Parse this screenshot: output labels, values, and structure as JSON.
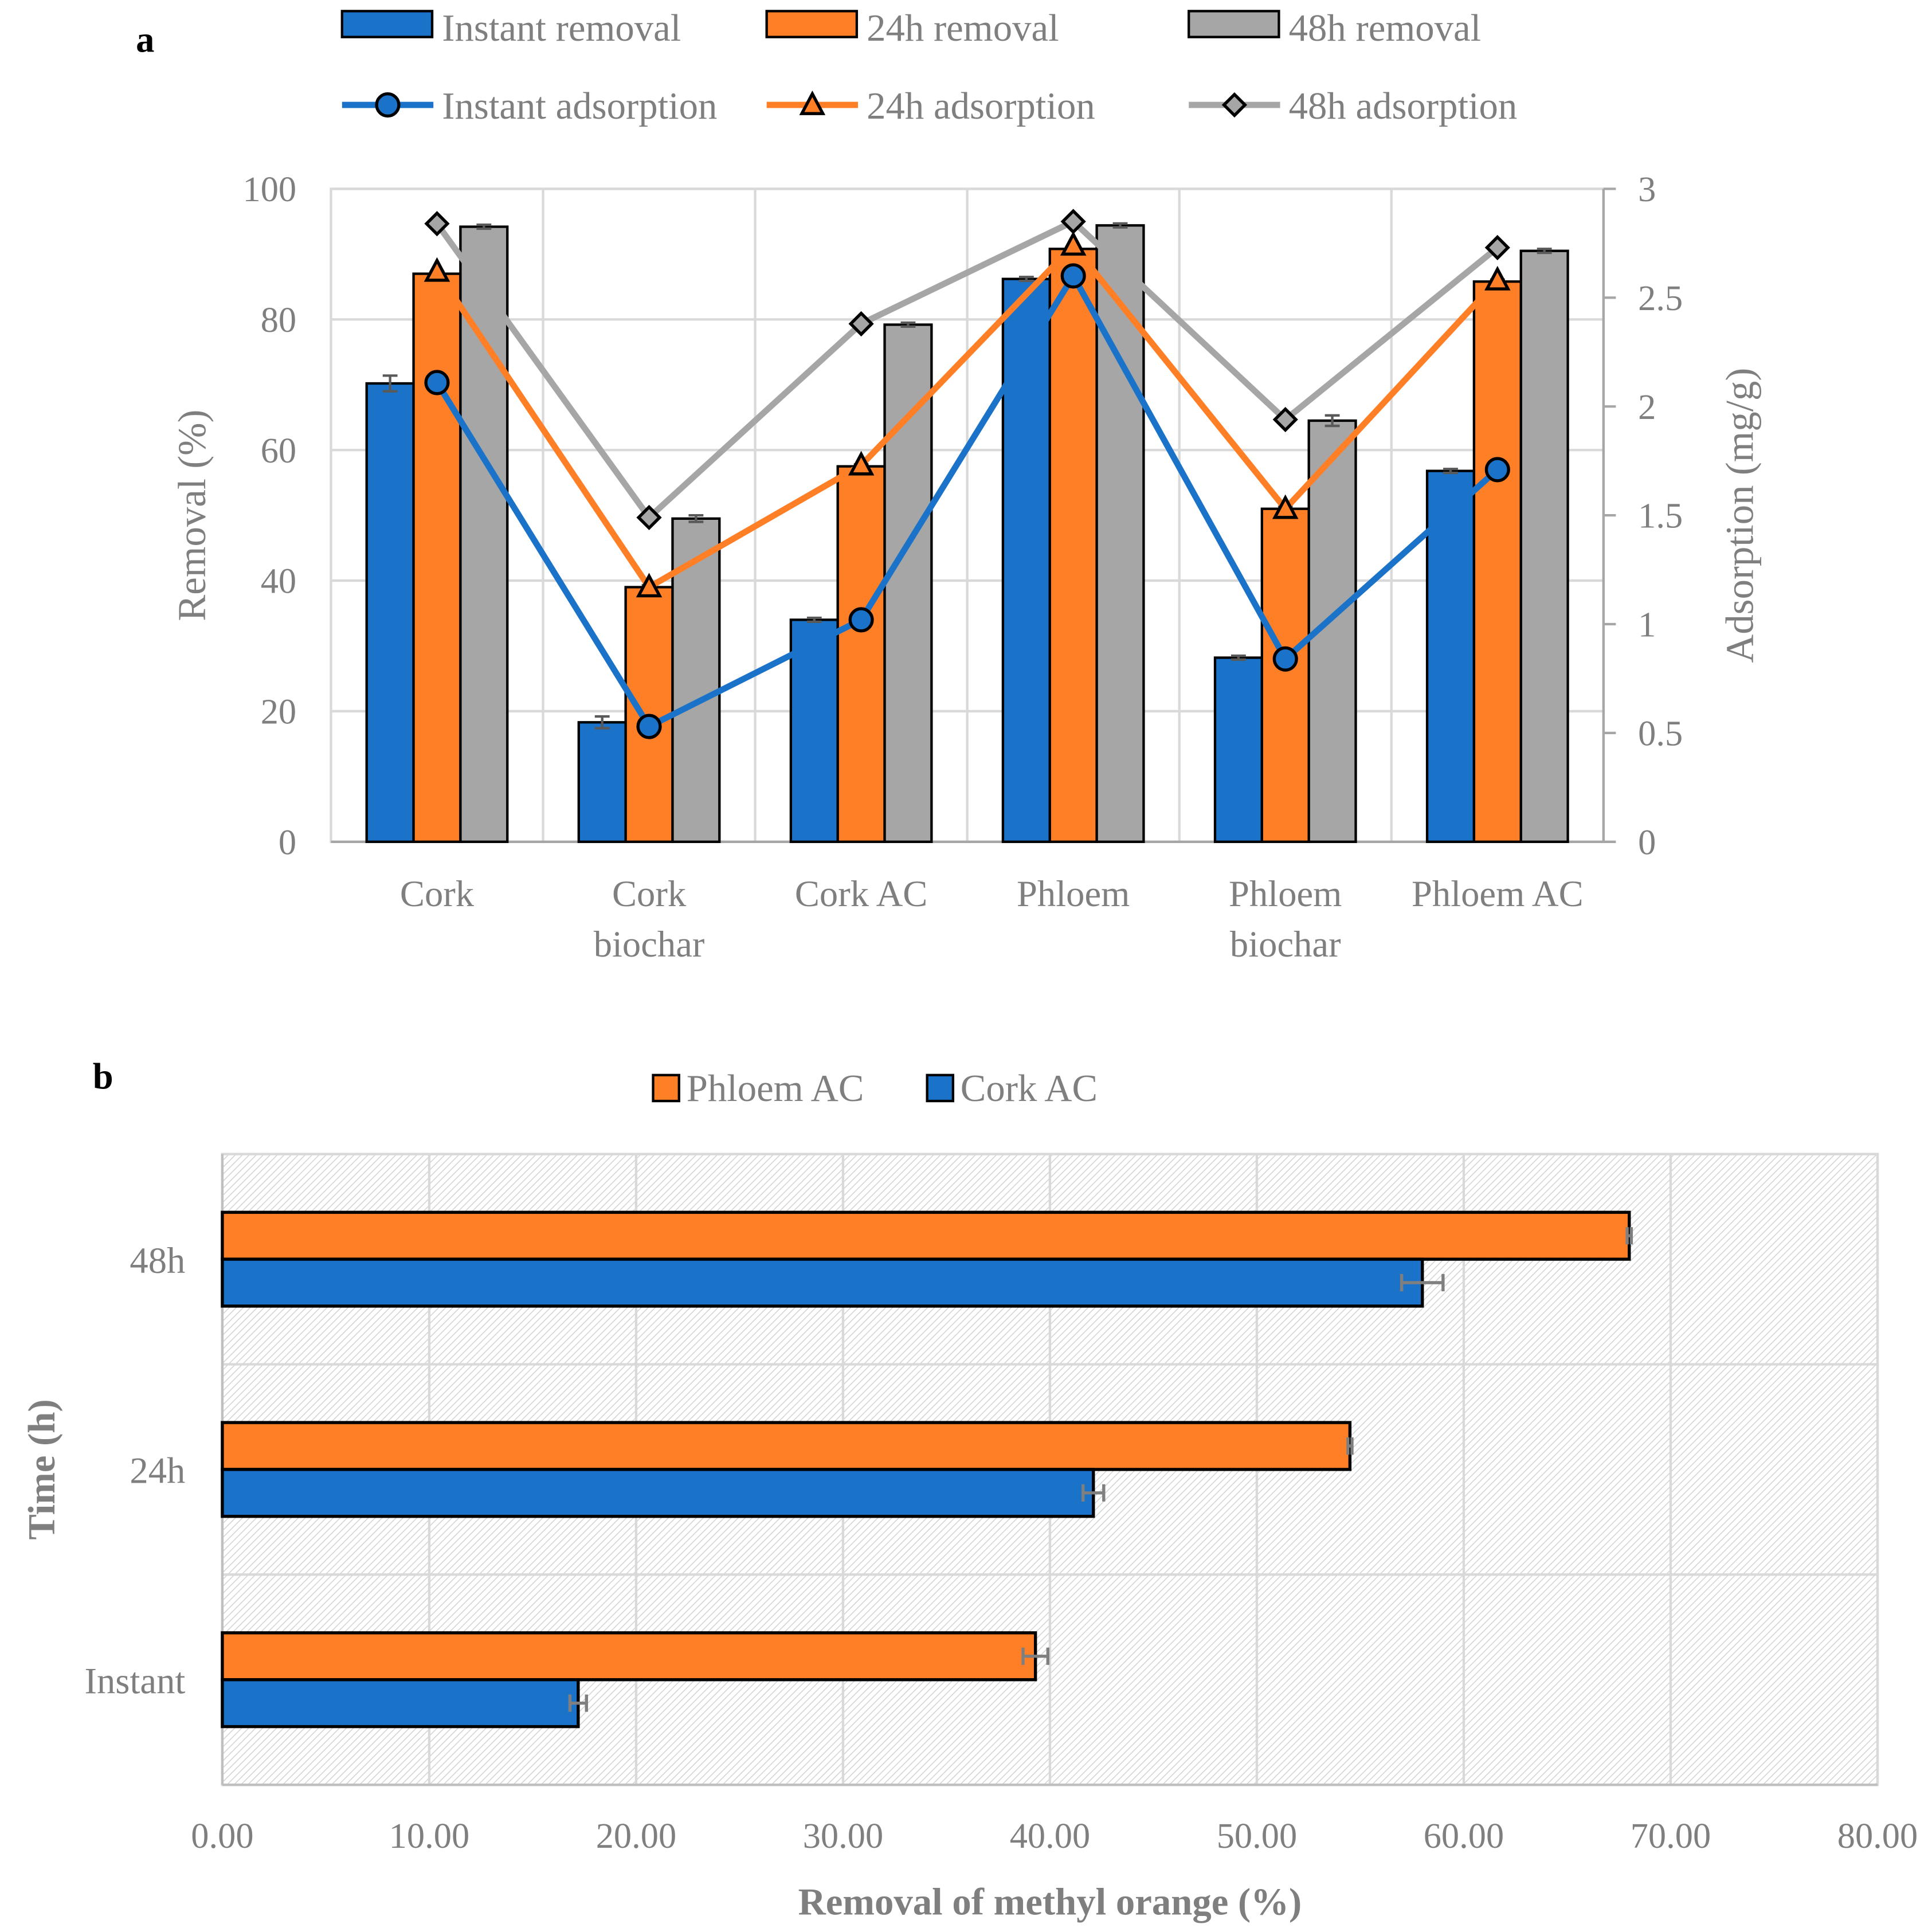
{
  "colors": {
    "blue": "#1A73C8",
    "orange": "#FF7F27",
    "gray": "#A6A6A6",
    "axis_text": "#7F7F7F",
    "grid": "#D9D9D9",
    "errbar": "#595959"
  },
  "panel_labels": {
    "a": "a",
    "b": "b"
  },
  "chart_data": [
    {
      "id": "a",
      "type": "bar",
      "categories": [
        "Cork",
        "Cork\nbiochar",
        "Cork AC",
        "Phloem",
        "Phloem\nbiochar",
        "Phloem AC"
      ],
      "ylabel": "Removal (%)",
      "ylim": [
        0,
        100
      ],
      "yticks": [
        "0",
        "20",
        "40",
        "60",
        "80",
        "100"
      ],
      "y2label": "Adsorption (mg/g)",
      "y2lim": [
        0,
        3
      ],
      "y2ticks": [
        "0",
        "0.5",
        "1",
        "1.5",
        "2",
        "2.5",
        "3"
      ],
      "series": [
        {
          "name": "Instant removal",
          "kind": "bar",
          "color": "#1A73C8",
          "values": [
            70.2,
            18.3,
            34.0,
            86.2,
            28.2,
            56.8
          ],
          "errors": [
            1.2,
            0.9,
            0.3,
            0.3,
            0.3,
            0.3
          ]
        },
        {
          "name": "24h removal",
          "kind": "bar",
          "color": "#FF7F27",
          "values": [
            87.0,
            39.0,
            57.5,
            90.8,
            51.0,
            85.8
          ],
          "errors": [
            0.3,
            0.3,
            0.3,
            0.3,
            0.3,
            0.3
          ]
        },
        {
          "name": "48h removal",
          "kind": "bar",
          "color": "#A6A6A6",
          "values": [
            94.2,
            49.5,
            79.2,
            94.4,
            64.5,
            90.5
          ],
          "errors": [
            0.3,
            0.5,
            0.3,
            0.3,
            0.8,
            0.3
          ]
        },
        {
          "name": "Instant adsorption",
          "kind": "line",
          "marker": "circle",
          "color": "#1A73C8",
          "values": [
            2.11,
            0.53,
            1.02,
            2.6,
            0.84,
            1.71
          ]
        },
        {
          "name": "24h adsorption",
          "kind": "line",
          "marker": "triangle",
          "color": "#FF7F27",
          "values": [
            2.62,
            1.17,
            1.73,
            2.74,
            1.53,
            2.58
          ]
        },
        {
          "name": "48h adsorption",
          "kind": "line",
          "marker": "diamond",
          "color": "#A6A6A6",
          "values": [
            2.84,
            1.49,
            2.38,
            2.85,
            1.94,
            2.73
          ]
        }
      ],
      "legend": "top"
    },
    {
      "id": "b",
      "type": "bar",
      "orientation": "horizontal",
      "categories": [
        "Instant",
        "24h",
        "48h"
      ],
      "xlabel": "Removal of methyl orange (%)",
      "ylabel": "Time (h)",
      "xlim": [
        0,
        80
      ],
      "xticks": [
        "0.00",
        "10.00",
        "20.00",
        "30.00",
        "40.00",
        "50.00",
        "60.00",
        "70.00",
        "80.00"
      ],
      "series": [
        {
          "name": "Phloem AC",
          "color": "#FF7F27",
          "values": [
            39.3,
            54.5,
            68.0
          ],
          "errors": [
            0.6,
            0.1,
            0.1
          ]
        },
        {
          "name": "Cork AC",
          "color": "#1A73C8",
          "values": [
            17.2,
            42.1,
            58.0
          ],
          "errors": [
            0.4,
            0.5,
            1.0
          ]
        }
      ],
      "legend": "top"
    }
  ]
}
